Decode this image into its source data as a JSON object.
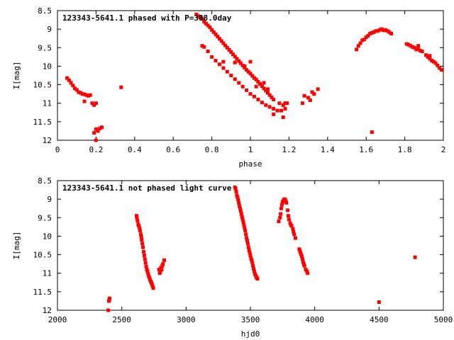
{
  "chart_data": [
    {
      "type": "scatter",
      "title": "123343-5641.1 phased with P=388.0day",
      "xlabel": "phase",
      "ylabel": "I[mag]",
      "xlim": [
        0,
        2
      ],
      "ylim": [
        8.5,
        12
      ],
      "y_inverted": true,
      "x_ticks": [
        "0",
        "0.2",
        "0.4",
        "0.6",
        "0.8",
        "1",
        "1.2",
        "1.4",
        "1.6",
        "1.8",
        "2"
      ],
      "y_ticks": [
        "8.5",
        "9",
        "9.5",
        "10",
        "10.5",
        "11",
        "11.5",
        "12"
      ],
      "grid": false,
      "marker_color": "#ff0000",
      "series": [
        {
          "points": [
            [
              0.05,
              10.32
            ],
            [
              0.06,
              10.38
            ],
            [
              0.07,
              10.45
            ],
            [
              0.08,
              10.52
            ],
            [
              0.09,
              10.6
            ],
            [
              0.1,
              10.64
            ],
            [
              0.11,
              10.7
            ],
            [
              0.12,
              10.72
            ],
            [
              0.13,
              10.75
            ],
            [
              0.14,
              10.76
            ],
            [
              0.15,
              10.78
            ],
            [
              0.16,
              10.8
            ],
            [
              0.17,
              10.78
            ],
            [
              0.14,
              10.95
            ],
            [
              0.18,
              11.0
            ],
            [
              0.19,
              11.05
            ],
            [
              0.2,
              11.0
            ],
            [
              0.19,
              11.8
            ],
            [
              0.2,
              11.7
            ],
            [
              0.21,
              11.75
            ],
            [
              0.22,
              11.68
            ],
            [
              0.23,
              11.65
            ],
            [
              0.2,
              12.0
            ],
            [
              0.33,
              10.57
            ],
            [
              0.72,
              8.6
            ],
            [
              0.73,
              8.65
            ],
            [
              0.74,
              8.68
            ],
            [
              0.75,
              8.72
            ],
            [
              0.76,
              8.8
            ],
            [
              0.77,
              8.85
            ],
            [
              0.78,
              8.9
            ],
            [
              0.79,
              8.95
            ],
            [
              0.8,
              9.02
            ],
            [
              0.81,
              9.08
            ],
            [
              0.82,
              9.14
            ],
            [
              0.83,
              9.2
            ],
            [
              0.84,
              9.26
            ],
            [
              0.85,
              9.32
            ],
            [
              0.86,
              9.38
            ],
            [
              0.87,
              9.44
            ],
            [
              0.88,
              9.5
            ],
            [
              0.89,
              9.56
            ],
            [
              0.9,
              9.62
            ],
            [
              0.91,
              9.68
            ],
            [
              0.92,
              9.74
            ],
            [
              0.93,
              9.8
            ],
            [
              0.94,
              9.86
            ],
            [
              0.95,
              9.92
            ],
            [
              0.96,
              9.98
            ],
            [
              0.97,
              10.04
            ],
            [
              0.98,
              10.1
            ],
            [
              0.99,
              10.15
            ],
            [
              1.0,
              10.2
            ],
            [
              1.01,
              10.26
            ],
            [
              1.02,
              10.32
            ],
            [
              1.03,
              10.36
            ],
            [
              1.04,
              10.42
            ],
            [
              1.05,
              10.48
            ],
            [
              1.06,
              10.54
            ],
            [
              1.07,
              10.6
            ],
            [
              1.08,
              10.66
            ],
            [
              1.09,
              10.72
            ],
            [
              1.1,
              10.78
            ],
            [
              1.11,
              10.84
            ],
            [
              1.12,
              10.9
            ],
            [
              0.75,
              9.45
            ],
            [
              0.76,
              9.48
            ],
            [
              0.78,
              9.6
            ],
            [
              0.8,
              9.75
            ],
            [
              0.82,
              9.85
            ],
            [
              0.84,
              9.95
            ],
            [
              0.86,
              10.05
            ],
            [
              0.88,
              10.15
            ],
            [
              0.9,
              10.25
            ],
            [
              0.92,
              10.35
            ],
            [
              0.94,
              10.45
            ],
            [
              0.96,
              10.55
            ],
            [
              0.98,
              10.65
            ],
            [
              1.0,
              10.75
            ],
            [
              1.02,
              10.82
            ],
            [
              1.04,
              10.9
            ],
            [
              1.06,
              10.98
            ],
            [
              1.08,
              11.05
            ],
            [
              1.1,
              11.1
            ],
            [
              1.12,
              11.15
            ],
            [
              1.14,
              11.2
            ],
            [
              1.16,
              11.2
            ],
            [
              1.18,
              11.15
            ],
            [
              1.15,
              11.0
            ],
            [
              1.17,
              11.05
            ],
            [
              0.86,
              9.88
            ],
            [
              0.92,
              9.9
            ],
            [
              0.97,
              10.0
            ],
            [
              1.0,
              9.88
            ],
            [
              1.03,
              10.55
            ],
            [
              1.07,
              10.45
            ],
            [
              1.09,
              10.62
            ],
            [
              1.12,
              11.3
            ],
            [
              1.17,
              11.38
            ],
            [
              1.18,
              11.0
            ],
            [
              1.19,
              11.0
            ],
            [
              1.27,
              11.0
            ],
            [
              1.28,
              10.8
            ],
            [
              1.3,
              10.85
            ],
            [
              1.31,
              10.92
            ],
            [
              1.32,
              10.7
            ],
            [
              1.33,
              10.75
            ],
            [
              1.35,
              10.62
            ],
            [
              1.55,
              9.55
            ],
            [
              1.56,
              9.45
            ],
            [
              1.57,
              9.38
            ],
            [
              1.58,
              9.3
            ],
            [
              1.59,
              9.28
            ],
            [
              1.6,
              9.22
            ],
            [
              1.61,
              9.18
            ],
            [
              1.62,
              9.12
            ],
            [
              1.63,
              9.1
            ],
            [
              1.64,
              9.08
            ],
            [
              1.65,
              9.05
            ],
            [
              1.66,
              9.05
            ],
            [
              1.67,
              9.02
            ],
            [
              1.68,
              9.0
            ],
            [
              1.69,
              9.03
            ],
            [
              1.7,
              9.02
            ],
            [
              1.71,
              9.05
            ],
            [
              1.72,
              9.08
            ],
            [
              1.73,
              9.12
            ],
            [
              1.63,
              11.78
            ],
            [
              1.81,
              9.4
            ],
            [
              1.82,
              9.42
            ],
            [
              1.83,
              9.45
            ],
            [
              1.84,
              9.48
            ],
            [
              1.85,
              9.5
            ],
            [
              1.86,
              9.55
            ],
            [
              1.87,
              9.52
            ],
            [
              1.88,
              9.58
            ],
            [
              1.89,
              9.6
            ],
            [
              1.87,
              9.45
            ],
            [
              1.91,
              9.7
            ],
            [
              1.92,
              9.75
            ],
            [
              1.93,
              9.8
            ],
            [
              1.94,
              9.85
            ],
            [
              1.95,
              9.88
            ],
            [
              1.96,
              9.92
            ],
            [
              1.97,
              9.98
            ],
            [
              1.98,
              10.05
            ],
            [
              1.99,
              10.1
            ],
            [
              1.93,
              9.72
            ]
          ]
        }
      ]
    },
    {
      "type": "scatter",
      "title": "123343-5641.1 not phased light curve",
      "xlabel": "hjd0",
      "ylabel": "I[mag]",
      "xlim": [
        2000,
        5000
      ],
      "ylim": [
        8.5,
        12
      ],
      "y_inverted": true,
      "x_ticks": [
        "2000",
        "2500",
        "3000",
        "3500",
        "4000",
        "4500",
        "5000"
      ],
      "y_ticks": [
        "8.5",
        "9",
        "9.5",
        "10",
        "10.5",
        "11",
        "11.5",
        "12"
      ],
      "grid": false,
      "marker_color": "#ff0000",
      "series": [
        {
          "points": [
            [
              2395,
              12.0
            ],
            [
              2400,
              11.75
            ],
            [
              2403,
              11.72
            ],
            [
              2405,
              11.68
            ],
            [
              2615,
              9.45
            ],
            [
              2618,
              9.5
            ],
            [
              2622,
              9.58
            ],
            [
              2628,
              9.68
            ],
            [
              2632,
              9.72
            ],
            [
              2638,
              9.78
            ],
            [
              2642,
              9.85
            ],
            [
              2648,
              9.95
            ],
            [
              2652,
              10.02
            ],
            [
              2655,
              10.1
            ],
            [
              2660,
              10.2
            ],
            [
              2665,
              10.3
            ],
            [
              2670,
              10.42
            ],
            [
              2675,
              10.52
            ],
            [
              2680,
              10.62
            ],
            [
              2685,
              10.72
            ],
            [
              2690,
              10.82
            ],
            [
              2695,
              10.9
            ],
            [
              2700,
              10.95
            ],
            [
              2705,
              11.02
            ],
            [
              2710,
              11.08
            ],
            [
              2715,
              11.12
            ],
            [
              2720,
              11.18
            ],
            [
              2725,
              11.22
            ],
            [
              2730,
              11.25
            ],
            [
              2735,
              11.3
            ],
            [
              2740,
              11.35
            ],
            [
              2745,
              11.4
            ],
            [
              2790,
              10.9
            ],
            [
              2795,
              11.0
            ],
            [
              2800,
              10.95
            ],
            [
              2805,
              10.85
            ],
            [
              2810,
              10.9
            ],
            [
              2815,
              10.8
            ],
            [
              2820,
              10.75
            ],
            [
              2830,
              10.65
            ],
            [
              3380,
              8.68
            ],
            [
              3385,
              8.72
            ],
            [
              3390,
              8.8
            ],
            [
              3395,
              8.9
            ],
            [
              3400,
              8.95
            ],
            [
              3405,
              9.02
            ],
            [
              3410,
              9.1
            ],
            [
              3415,
              9.18
            ],
            [
              3420,
              9.25
            ],
            [
              3425,
              9.32
            ],
            [
              3430,
              9.4
            ],
            [
              3435,
              9.48
            ],
            [
              3440,
              9.55
            ],
            [
              3445,
              9.62
            ],
            [
              3450,
              9.7
            ],
            [
              3455,
              9.78
            ],
            [
              3460,
              9.85
            ],
            [
              3465,
              9.95
            ],
            [
              3470,
              10.05
            ],
            [
              3475,
              10.12
            ],
            [
              3480,
              10.2
            ],
            [
              3485,
              10.3
            ],
            [
              3490,
              10.38
            ],
            [
              3495,
              10.45
            ],
            [
              3500,
              10.52
            ],
            [
              3505,
              10.6
            ],
            [
              3510,
              10.65
            ],
            [
              3515,
              10.72
            ],
            [
              3520,
              10.8
            ],
            [
              3525,
              10.88
            ],
            [
              3530,
              10.95
            ],
            [
              3535,
              11.02
            ],
            [
              3540,
              11.05
            ],
            [
              3545,
              11.1
            ],
            [
              3550,
              11.12
            ],
            [
              3555,
              11.15
            ],
            [
              3720,
              9.6
            ],
            [
              3730,
              9.5
            ],
            [
              3735,
              9.4
            ],
            [
              3740,
              9.25
            ],
            [
              3745,
              9.15
            ],
            [
              3750,
              9.08
            ],
            [
              3755,
              9.05
            ],
            [
              3760,
              9.02
            ],
            [
              3765,
              9.0
            ],
            [
              3770,
              9.02
            ],
            [
              3775,
              9.05
            ],
            [
              3780,
              9.1
            ],
            [
              3790,
              9.3
            ],
            [
              3795,
              9.45
            ],
            [
              3800,
              9.55
            ],
            [
              3810,
              9.65
            ],
            [
              3815,
              9.7
            ],
            [
              3820,
              9.72
            ],
            [
              3830,
              9.8
            ],
            [
              3835,
              9.88
            ],
            [
              3840,
              9.95
            ],
            [
              3850,
              10.05
            ],
            [
              3880,
              10.35
            ],
            [
              3885,
              10.4
            ],
            [
              3890,
              10.45
            ],
            [
              3895,
              10.5
            ],
            [
              3900,
              10.55
            ],
            [
              3905,
              10.62
            ],
            [
              3910,
              10.7
            ],
            [
              3915,
              10.75
            ],
            [
              3920,
              10.8
            ],
            [
              3930,
              10.9
            ],
            [
              3940,
              10.95
            ],
            [
              3945,
              11.0
            ],
            [
              4500,
              11.78
            ],
            [
              4780,
              10.57
            ]
          ]
        }
      ]
    }
  ]
}
